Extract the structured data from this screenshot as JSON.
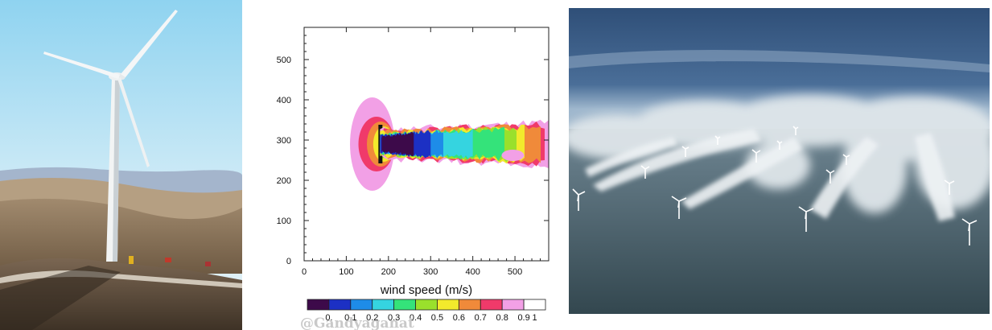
{
  "left_photo": {
    "subject": "onshore-wind-turbine-on-hill"
  },
  "right_photo": {
    "subject": "offshore-wind-farm-wake-clouds"
  },
  "chart_data": {
    "type": "heatmap",
    "title": "",
    "xlabel": "wind speed (m/s)",
    "ylabel": "",
    "xlim": [
      0,
      580
    ],
    "ylim": [
      0,
      580
    ],
    "x_ticks": [
      "0",
      "100",
      "200",
      "300",
      "400",
      "500"
    ],
    "y_ticks": [
      "0",
      "100",
      "200",
      "300",
      "400",
      "500"
    ],
    "grid": false,
    "colorbar": {
      "placement": "bottom",
      "labels": [
        "0.",
        "0.1",
        "0.2",
        "0.3",
        "0.4",
        "0.5",
        "0.6",
        "0.7",
        "0.8",
        "0.9",
        "1"
      ],
      "colors": [
        "#3d0a4a",
        "#1c30c4",
        "#1e8ce8",
        "#35d4e0",
        "#34e37a",
        "#9ae02c",
        "#f2ea2c",
        "#f08a3a",
        "#f03a6a",
        "#f2a0e6",
        "#ffffff"
      ]
    },
    "wake": {
      "rotor_x": 180,
      "center_y": 290,
      "description_of_field": "normalized wind speed deficit behind a turbine rotor"
    }
  },
  "watermark": "@Gandyaganat"
}
